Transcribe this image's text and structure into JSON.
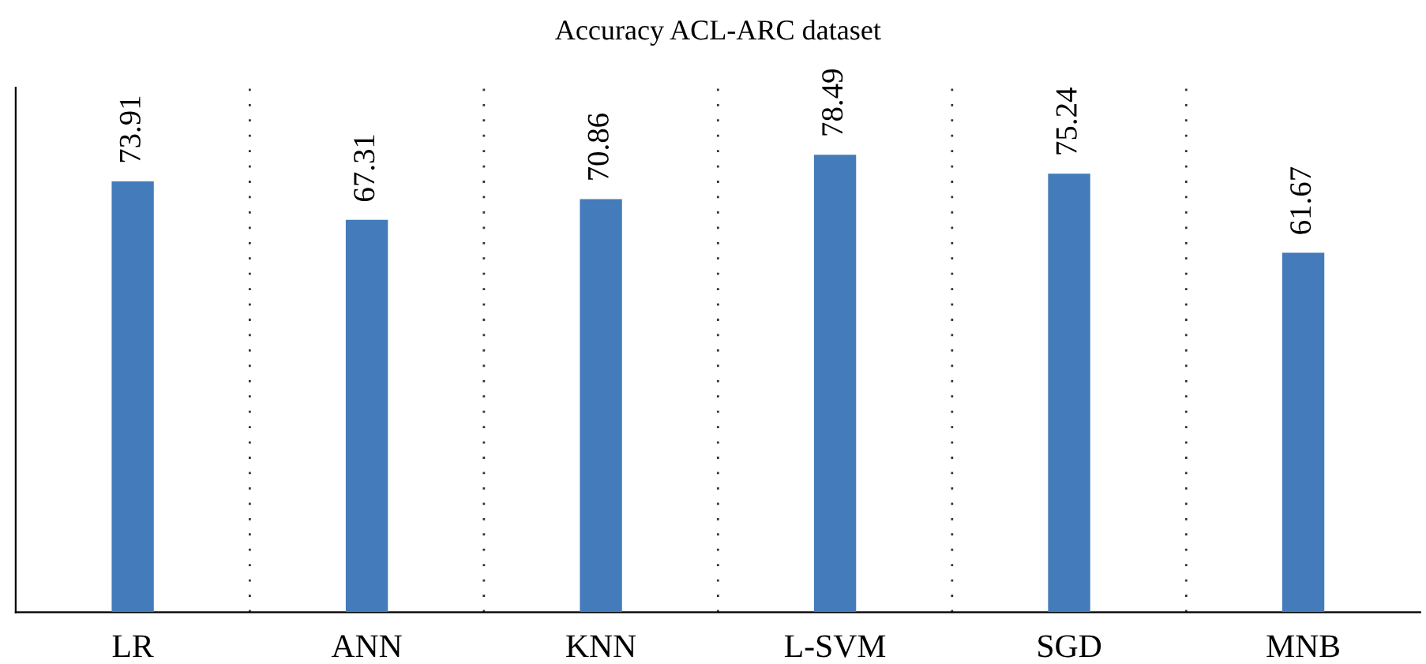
{
  "chart_data": {
    "type": "bar",
    "title": "Accuracy ACL-ARC dataset",
    "categories": [
      "LR",
      "ANN",
      "KNN",
      "L-SVM",
      "SGD",
      "MNB"
    ],
    "values": [
      73.91,
      67.31,
      70.86,
      78.49,
      75.24,
      61.67
    ],
    "color": "#447bbb",
    "ylim": [
      0,
      90
    ],
    "tick_labels": "x",
    "data_labels": true,
    "grid": "x"
  }
}
